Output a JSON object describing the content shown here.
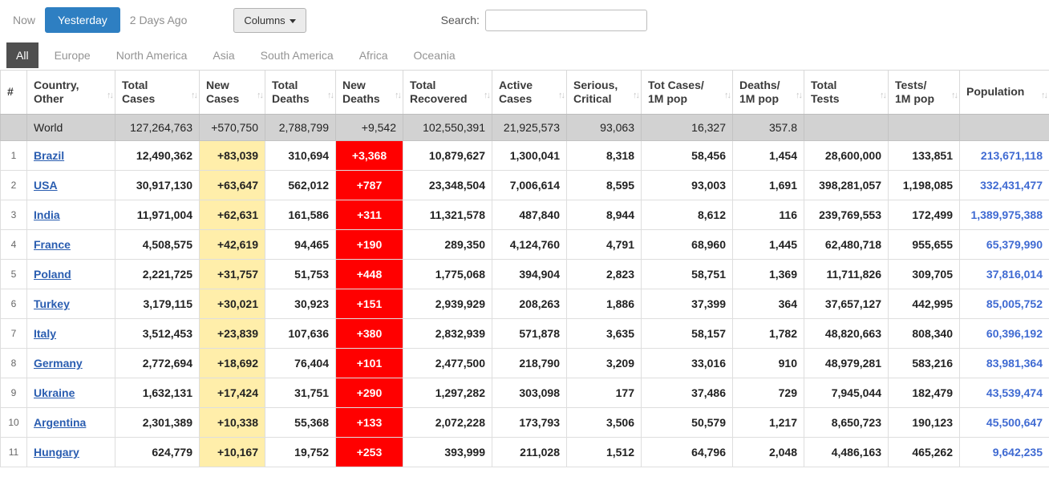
{
  "toolbar": {
    "now_label": "Now",
    "yesterday_label": "Yesterday",
    "two_days_ago_label": "2 Days Ago",
    "columns_label": "Columns",
    "search_label": "Search:",
    "search_value": ""
  },
  "tabs": [
    "All",
    "Europe",
    "North America",
    "Asia",
    "South America",
    "Africa",
    "Oceania"
  ],
  "active_tab": "All",
  "colors": {
    "accent_blue": "#2e7fc2",
    "active_tab_bg": "#4f4f4f",
    "new_cases_bg": "#FFEEAA",
    "new_deaths_bg": "#FF0000",
    "link_blue": "#2a5db0",
    "population_blue": "#3f6ad2",
    "world_row_bg": "#d2d2d2"
  },
  "table": {
    "headers": [
      {
        "id": "rank",
        "label": "#",
        "sortable": false
      },
      {
        "id": "country",
        "label": "Country,\nOther",
        "sortable": true
      },
      {
        "id": "total_cases",
        "label": "Total\nCases",
        "sortable": true
      },
      {
        "id": "new_cases",
        "label": "New\nCases",
        "sortable": true
      },
      {
        "id": "total_deaths",
        "label": "Total\nDeaths",
        "sortable": true
      },
      {
        "id": "new_deaths",
        "label": "New\nDeaths",
        "sortable": true
      },
      {
        "id": "total_recovered",
        "label": "Total\nRecovered",
        "sortable": true
      },
      {
        "id": "active_cases",
        "label": "Active\nCases",
        "sortable": true
      },
      {
        "id": "serious_critical",
        "label": "Serious,\nCritical",
        "sortable": true
      },
      {
        "id": "tot_cases_1m",
        "label": "Tot Cases/\n1M pop",
        "sortable": true
      },
      {
        "id": "deaths_1m",
        "label": "Deaths/\n1M pop",
        "sortable": true
      },
      {
        "id": "total_tests",
        "label": "Total\nTests",
        "sortable": true
      },
      {
        "id": "tests_1m",
        "label": "Tests/\n1M pop",
        "sortable": true
      },
      {
        "id": "population",
        "label": "Population",
        "sortable": true
      }
    ],
    "world_row": {
      "rank": "",
      "country": "World",
      "total_cases": "127,264,763",
      "new_cases": "+570,750",
      "total_deaths": "2,788,799",
      "new_deaths": "+9,542",
      "total_recovered": "102,550,391",
      "active_cases": "21,925,573",
      "serious_critical": "93,063",
      "tot_cases_1m": "16,327",
      "deaths_1m": "357.8",
      "total_tests": "",
      "tests_1m": "",
      "population": ""
    },
    "rows": [
      {
        "rank": "1",
        "country": "Brazil",
        "total_cases": "12,490,362",
        "new_cases": "+83,039",
        "total_deaths": "310,694",
        "new_deaths": "+3,368",
        "total_recovered": "10,879,627",
        "active_cases": "1,300,041",
        "serious_critical": "8,318",
        "tot_cases_1m": "58,456",
        "deaths_1m": "1,454",
        "total_tests": "28,600,000",
        "tests_1m": "133,851",
        "population": "213,671,118"
      },
      {
        "rank": "2",
        "country": "USA",
        "total_cases": "30,917,130",
        "new_cases": "+63,647",
        "total_deaths": "562,012",
        "new_deaths": "+787",
        "total_recovered": "23,348,504",
        "active_cases": "7,006,614",
        "serious_critical": "8,595",
        "tot_cases_1m": "93,003",
        "deaths_1m": "1,691",
        "total_tests": "398,281,057",
        "tests_1m": "1,198,085",
        "population": "332,431,477"
      },
      {
        "rank": "3",
        "country": "India",
        "total_cases": "11,971,004",
        "new_cases": "+62,631",
        "total_deaths": "161,586",
        "new_deaths": "+311",
        "total_recovered": "11,321,578",
        "active_cases": "487,840",
        "serious_critical": "8,944",
        "tot_cases_1m": "8,612",
        "deaths_1m": "116",
        "total_tests": "239,769,553",
        "tests_1m": "172,499",
        "population": "1,389,975,388"
      },
      {
        "rank": "4",
        "country": "France",
        "total_cases": "4,508,575",
        "new_cases": "+42,619",
        "total_deaths": "94,465",
        "new_deaths": "+190",
        "total_recovered": "289,350",
        "active_cases": "4,124,760",
        "serious_critical": "4,791",
        "tot_cases_1m": "68,960",
        "deaths_1m": "1,445",
        "total_tests": "62,480,718",
        "tests_1m": "955,655",
        "population": "65,379,990"
      },
      {
        "rank": "5",
        "country": "Poland",
        "total_cases": "2,221,725",
        "new_cases": "+31,757",
        "total_deaths": "51,753",
        "new_deaths": "+448",
        "total_recovered": "1,775,068",
        "active_cases": "394,904",
        "serious_critical": "2,823",
        "tot_cases_1m": "58,751",
        "deaths_1m": "1,369",
        "total_tests": "11,711,826",
        "tests_1m": "309,705",
        "population": "37,816,014"
      },
      {
        "rank": "6",
        "country": "Turkey",
        "total_cases": "3,179,115",
        "new_cases": "+30,021",
        "total_deaths": "30,923",
        "new_deaths": "+151",
        "total_recovered": "2,939,929",
        "active_cases": "208,263",
        "serious_critical": "1,886",
        "tot_cases_1m": "37,399",
        "deaths_1m": "364",
        "total_tests": "37,657,127",
        "tests_1m": "442,995",
        "population": "85,005,752"
      },
      {
        "rank": "7",
        "country": "Italy",
        "total_cases": "3,512,453",
        "new_cases": "+23,839",
        "total_deaths": "107,636",
        "new_deaths": "+380",
        "total_recovered": "2,832,939",
        "active_cases": "571,878",
        "serious_critical": "3,635",
        "tot_cases_1m": "58,157",
        "deaths_1m": "1,782",
        "total_tests": "48,820,663",
        "tests_1m": "808,340",
        "population": "60,396,192"
      },
      {
        "rank": "8",
        "country": "Germany",
        "total_cases": "2,772,694",
        "new_cases": "+18,692",
        "total_deaths": "76,404",
        "new_deaths": "+101",
        "total_recovered": "2,477,500",
        "active_cases": "218,790",
        "serious_critical": "3,209",
        "tot_cases_1m": "33,016",
        "deaths_1m": "910",
        "total_tests": "48,979,281",
        "tests_1m": "583,216",
        "population": "83,981,364"
      },
      {
        "rank": "9",
        "country": "Ukraine",
        "total_cases": "1,632,131",
        "new_cases": "+17,424",
        "total_deaths": "31,751",
        "new_deaths": "+290",
        "total_recovered": "1,297,282",
        "active_cases": "303,098",
        "serious_critical": "177",
        "tot_cases_1m": "37,486",
        "deaths_1m": "729",
        "total_tests": "7,945,044",
        "tests_1m": "182,479",
        "population": "43,539,474"
      },
      {
        "rank": "10",
        "country": "Argentina",
        "total_cases": "2,301,389",
        "new_cases": "+10,338",
        "total_deaths": "55,368",
        "new_deaths": "+133",
        "total_recovered": "2,072,228",
        "active_cases": "173,793",
        "serious_critical": "3,506",
        "tot_cases_1m": "50,579",
        "deaths_1m": "1,217",
        "total_tests": "8,650,723",
        "tests_1m": "190,123",
        "population": "45,500,647"
      },
      {
        "rank": "11",
        "country": "Hungary",
        "total_cases": "624,779",
        "new_cases": "+10,167",
        "total_deaths": "19,752",
        "new_deaths": "+253",
        "total_recovered": "393,999",
        "active_cases": "211,028",
        "serious_critical": "1,512",
        "tot_cases_1m": "64,796",
        "deaths_1m": "2,048",
        "total_tests": "4,486,163",
        "tests_1m": "465,262",
        "population": "9,642,235"
      }
    ]
  }
}
